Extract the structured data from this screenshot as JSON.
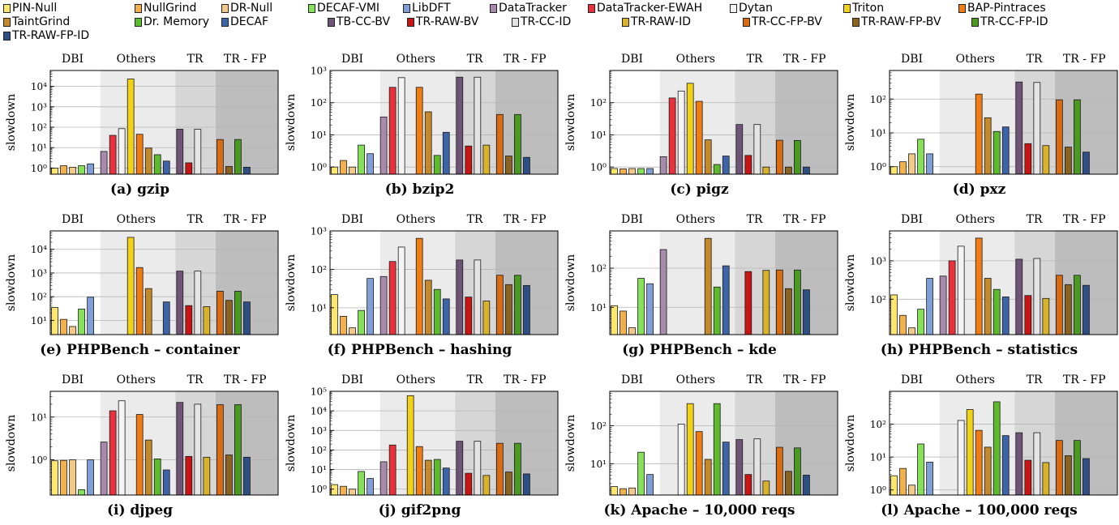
{
  "legend": [
    {
      "name": "PIN-Null",
      "color": "#ffe66e"
    },
    {
      "name": "NullGrind",
      "color": "#f3b04e"
    },
    {
      "name": "DR-Null",
      "color": "#f3c98a"
    },
    {
      "name": "DECAF-VMI",
      "color": "#86e05a"
    },
    {
      "name": "LibDFT",
      "color": "#7f9fd6"
    },
    {
      "name": "DataTracker",
      "color": "#a88aad"
    },
    {
      "name": "DataTracker-EWAH",
      "color": "#e8313a"
    },
    {
      "name": "Dytan",
      "color": "#f4f4f4"
    },
    {
      "name": "Triton",
      "color": "#f2d219"
    },
    {
      "name": "BAP-Pintraces",
      "color": "#f07d14"
    },
    {
      "name": "TaintGrind",
      "color": "#c4892a"
    },
    {
      "name": "Dr. Memory",
      "color": "#5dbb2c"
    },
    {
      "name": "DECAF",
      "color": "#3d64a6"
    },
    {
      "name": "TB-CC-BV",
      "color": "#6f5478"
    },
    {
      "name": "TR-RAW-BV",
      "color": "#c81414"
    },
    {
      "name": "TR-CC-ID",
      "color": "#e4e4e4"
    },
    {
      "name": "TR-RAW-ID",
      "color": "#d8b22a"
    },
    {
      "name": "TR-CC-FP-BV",
      "color": "#d96b12"
    },
    {
      "name": "TR-RAW-FP-BV",
      "color": "#8b6220"
    },
    {
      "name": "TR-CC-FP-ID",
      "color": "#4a9a22"
    },
    {
      "name": "TR-RAW-FP-ID",
      "color": "#2e4f86"
    }
  ],
  "group_labels": [
    "DBI",
    "Others",
    "TR",
    "TR - FP"
  ],
  "chart_data": [
    {
      "type": "bar",
      "caption": "(a) gzip",
      "ylabel": "slowdown",
      "scale": "log",
      "ylim": [
        0.5,
        60000
      ],
      "ticks": [
        1,
        10,
        100,
        1000,
        10000
      ],
      "tick_labels": [
        "10⁰",
        "10¹",
        "10²",
        "10³",
        "10⁴"
      ],
      "values": [
        1.0,
        1.3,
        1.1,
        1.3,
        1.6,
        6.5,
        40,
        85,
        23000,
        45,
        9.5,
        4.5,
        2.2,
        80,
        1.8,
        80,
        0,
        25,
        1.2,
        25,
        1.1
      ]
    },
    {
      "type": "bar",
      "caption": "(b) bzip2",
      "ylabel": "slowdown",
      "scale": "log",
      "ylim": [
        0.6,
        1000
      ],
      "ticks": [
        1,
        10,
        100,
        1000
      ],
      "tick_labels": [
        "10⁰",
        "10¹",
        "10²",
        "10³"
      ],
      "values": [
        1.0,
        1.6,
        1.0,
        4.8,
        2.6,
        36,
        300,
        600,
        0,
        300,
        52,
        2.3,
        12,
        620,
        4.5,
        620,
        4.8,
        43,
        2.2,
        43,
        2.0
      ]
    },
    {
      "type": "bar",
      "caption": "(c) pigz",
      "ylabel": "slowdown",
      "scale": "log",
      "ylim": [
        0.6,
        1000
      ],
      "ticks": [
        1,
        10,
        100
      ],
      "tick_labels": [
        "10⁰",
        "10¹",
        "10²"
      ],
      "values": [
        0.9,
        0.88,
        0.9,
        0.9,
        0.9,
        2.1,
        140,
        230,
        400,
        110,
        7,
        1.2,
        2.2,
        21,
        2.3,
        21,
        1.0,
        6.8,
        1.0,
        6.7,
        1.0
      ]
    },
    {
      "type": "bar",
      "caption": "(d) pxz",
      "ylabel": "slowdown",
      "scale": "log",
      "ylim": [
        0.6,
        700
      ],
      "ticks": [
        1,
        10,
        100
      ],
      "tick_labels": [
        "10⁰",
        "10¹",
        "10²"
      ],
      "values": [
        1.0,
        1.4,
        2.4,
        6.5,
        2.4,
        0,
        0,
        0,
        0,
        140,
        28,
        11,
        15,
        320,
        4.8,
        310,
        4.2,
        95,
        3.8,
        95,
        2.7
      ]
    },
    {
      "type": "bar",
      "caption": "(e) PHPBench – container",
      "ylabel": "slowdown",
      "scale": "log",
      "ylim": [
        2.5,
        60000
      ],
      "ticks": [
        10,
        100,
        1000,
        10000
      ],
      "tick_labels": [
        "10¹",
        "10²",
        "10³",
        "10⁴"
      ],
      "values": [
        35,
        11,
        5.5,
        30,
        95,
        0,
        0,
        0,
        32000,
        1700,
        220,
        0,
        60,
        1200,
        42,
        1200,
        38,
        170,
        70,
        170,
        60
      ]
    },
    {
      "type": "bar",
      "caption": "(f) PHPBench – hashing",
      "ylabel": "slowdown",
      "scale": "log",
      "ylim": [
        2,
        1000
      ],
      "ticks": [
        10,
        100,
        1000
      ],
      "tick_labels": [
        "10¹",
        "10²",
        "10³"
      ],
      "values": [
        22,
        6,
        3,
        8.5,
        58,
        65,
        160,
        380,
        0,
        640,
        52,
        30,
        17,
        175,
        19,
        175,
        15,
        70,
        40,
        70,
        38
      ]
    },
    {
      "type": "bar",
      "caption": "(g) PHPBench – kde",
      "ylabel": "slowdown",
      "scale": "log",
      "ylim": [
        2,
        900
      ],
      "ticks": [
        10,
        100
      ],
      "tick_labels": [
        "10¹",
        "10²"
      ],
      "values": [
        11,
        8,
        3,
        55,
        40,
        300,
        0,
        0,
        0,
        0,
        580,
        33,
        115,
        0,
        82,
        0,
        88,
        90,
        30,
        90,
        28
      ]
    },
    {
      "type": "bar",
      "caption": "(h) PHPBench – statistics",
      "ylabel": "slowdown",
      "scale": "log",
      "ylim": [
        12,
        6000
      ],
      "ticks": [
        100,
        1000
      ],
      "tick_labels": [
        "10²",
        "10³"
      ],
      "values": [
        130,
        38,
        18,
        55,
        350,
        400,
        1000,
        2400,
        0,
        3900,
        350,
        180,
        115,
        1100,
        125,
        1150,
        105,
        420,
        240,
        420,
        230
      ]
    },
    {
      "type": "bar",
      "caption": "(i) djpeg",
      "ylabel": "slowdown",
      "scale": "log",
      "ylim": [
        0.15,
        40
      ],
      "ticks": [
        1,
        10
      ],
      "tick_labels": [
        "10⁰",
        "10¹"
      ],
      "values": [
        0.95,
        0.97,
        1.0,
        0.2,
        1.0,
        2.6,
        14,
        24,
        0,
        11.5,
        2.9,
        1.05,
        0.58,
        22,
        1.2,
        20,
        1.15,
        19.5,
        1.3,
        19.5,
        1.15
      ]
    },
    {
      "type": "bar",
      "caption": "(j) gif2png",
      "ylabel": "slowdown",
      "scale": "log",
      "ylim": [
        0.5,
        100000
      ],
      "ticks": [
        1,
        10,
        100,
        1000,
        10000,
        100000
      ],
      "tick_labels": [
        "10⁰",
        "10¹",
        "10²",
        "10³",
        "10⁴",
        "10⁵"
      ],
      "values": [
        1.7,
        1.4,
        1.0,
        8,
        3.5,
        25,
        180,
        0,
        60000,
        150,
        30,
        33,
        12,
        280,
        6.5,
        280,
        5,
        220,
        7.5,
        220,
        6
      ]
    },
    {
      "type": "bar",
      "caption": "(k) Apache – 10,000 reqs",
      "ylabel": "slowdown",
      "scale": "log",
      "ylim": [
        1.5,
        800
      ],
      "ticks": [
        10,
        100
      ],
      "tick_labels": [
        "10¹",
        "10²"
      ],
      "values": [
        2.5,
        2.2,
        2.3,
        20,
        5.2,
        0,
        0,
        110,
        380,
        70,
        13,
        380,
        37,
        43,
        5.2,
        45,
        3.5,
        27,
        6.3,
        26,
        5
      ]
    },
    {
      "type": "bar",
      "caption": "(l) Apache – 100,000 reqs",
      "ylabel": "slowdown",
      "scale": "log",
      "ylim": [
        0.7,
        1000
      ],
      "ticks": [
        1,
        10,
        100
      ],
      "tick_labels": [
        "10⁰",
        "10¹",
        "10²"
      ],
      "values": [
        2.7,
        4.5,
        1.4,
        25,
        7,
        0,
        0,
        130,
        280,
        65,
        20,
        480,
        45,
        55,
        8,
        55,
        6.8,
        32,
        11,
        32,
        9
      ]
    }
  ]
}
